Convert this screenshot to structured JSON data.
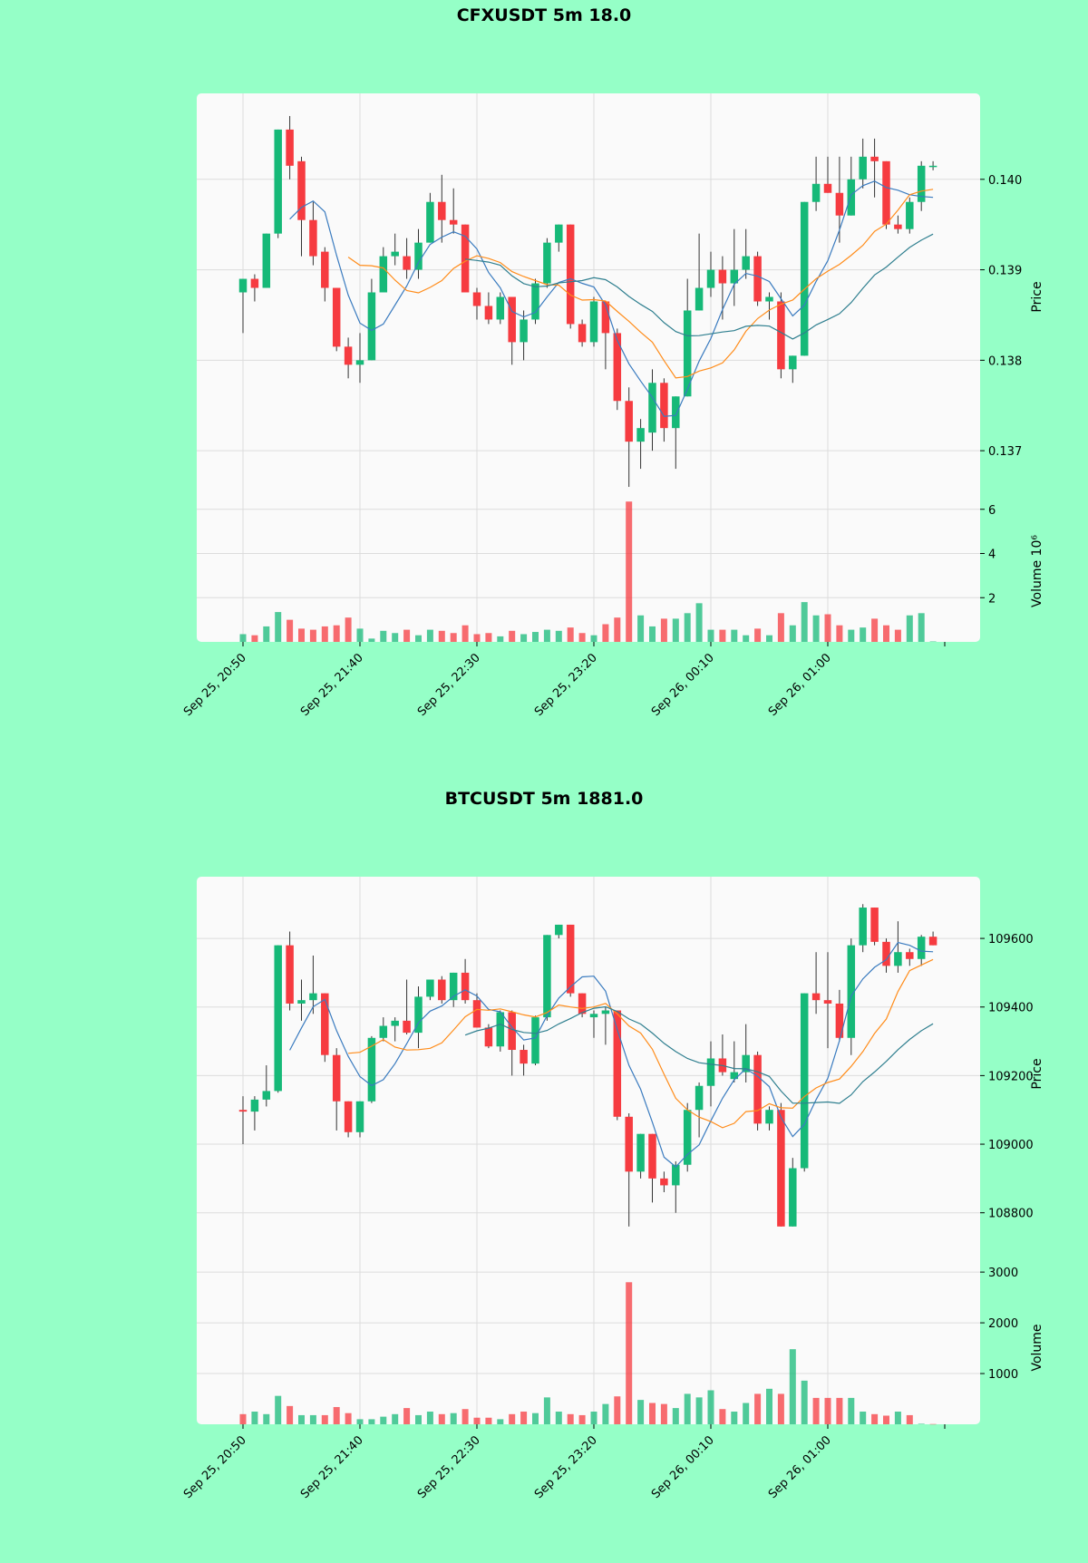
{
  "colors": {
    "background": "#95ffc7",
    "panel": "#fafafa",
    "up": "#16b978",
    "down": "#f63b40",
    "ma_short": "#3a7bbf",
    "ma_mid": "#ff8c1a",
    "ma_long": "#2f7f8f",
    "grid": "#dcdcdc"
  },
  "chart_data": [
    {
      "type": "candlestick",
      "title": "CFXUSDT 5m 18.0",
      "price_label": "Price",
      "volume_label": "Volume  10⁶",
      "time_ticks": [
        "Sep 25, 20:50",
        "Sep 25, 21:40",
        "Sep 25, 22:30",
        "Sep 25, 23:20",
        "Sep 26, 00:10",
        "Sep 26, 01:00"
      ],
      "time_tick_index": [
        0,
        10,
        20,
        30,
        40,
        50
      ],
      "price_ticks": [
        0.137,
        0.138,
        0.139,
        0.14
      ],
      "price_tick_labels": [
        "0.137",
        "0.138",
        "0.139",
        "0.140"
      ],
      "price_range": [
        0.13645,
        0.14095
      ],
      "volume_ticks": [
        2,
        4,
        6
      ],
      "volume_tick_labels": [
        "2",
        "4",
        "6"
      ],
      "volume_range": [
        0,
        6.4
      ],
      "ohlc": [
        [
          0.13875,
          0.1389,
          0.1383,
          0.1389
        ],
        [
          0.1389,
          0.13895,
          0.13865,
          0.1388
        ],
        [
          0.1388,
          0.1394,
          0.1388,
          0.1394
        ],
        [
          0.1394,
          0.14055,
          0.13935,
          0.14055
        ],
        [
          0.14055,
          0.1407,
          0.14,
          0.14015
        ],
        [
          0.1402,
          0.14025,
          0.13915,
          0.13955
        ],
        [
          0.13955,
          0.13975,
          0.13905,
          0.13915
        ],
        [
          0.1392,
          0.13925,
          0.13865,
          0.1388
        ],
        [
          0.1388,
          0.1388,
          0.1381,
          0.13815
        ],
        [
          0.13815,
          0.13825,
          0.1378,
          0.13795
        ],
        [
          0.13795,
          0.1383,
          0.13775,
          0.138
        ],
        [
          0.138,
          0.1389,
          0.138,
          0.13875
        ],
        [
          0.13875,
          0.13925,
          0.13875,
          0.13915
        ],
        [
          0.13915,
          0.1394,
          0.13905,
          0.1392
        ],
        [
          0.13915,
          0.13935,
          0.1389,
          0.139
        ],
        [
          0.139,
          0.13945,
          0.1389,
          0.1393
        ],
        [
          0.1393,
          0.13985,
          0.1393,
          0.13975
        ],
        [
          0.13975,
          0.14005,
          0.1393,
          0.13955
        ],
        [
          0.13955,
          0.1399,
          0.1394,
          0.1395
        ],
        [
          0.1395,
          0.1395,
          0.13875,
          0.13875
        ],
        [
          0.13875,
          0.1388,
          0.13845,
          0.1386
        ],
        [
          0.1386,
          0.13875,
          0.1384,
          0.13845
        ],
        [
          0.13845,
          0.13875,
          0.1384,
          0.1387
        ],
        [
          0.1387,
          0.1387,
          0.13795,
          0.1382
        ],
        [
          0.1382,
          0.13855,
          0.138,
          0.13845
        ],
        [
          0.13845,
          0.1389,
          0.1384,
          0.13885
        ],
        [
          0.13885,
          0.13935,
          0.1388,
          0.1393
        ],
        [
          0.1393,
          0.1395,
          0.1392,
          0.1395
        ],
        [
          0.1395,
          0.1395,
          0.13835,
          0.1384
        ],
        [
          0.1384,
          0.13845,
          0.13815,
          0.1382
        ],
        [
          0.1382,
          0.1387,
          0.13815,
          0.13865
        ],
        [
          0.13865,
          0.13865,
          0.1379,
          0.1383
        ],
        [
          0.1383,
          0.13835,
          0.13745,
          0.13755
        ],
        [
          0.13755,
          0.1377,
          0.1366,
          0.1371
        ],
        [
          0.1371,
          0.13735,
          0.1368,
          0.13725
        ],
        [
          0.1372,
          0.1379,
          0.137,
          0.13775
        ],
        [
          0.13775,
          0.1378,
          0.1371,
          0.13725
        ],
        [
          0.13725,
          0.1376,
          0.1368,
          0.1376
        ],
        [
          0.1376,
          0.1389,
          0.1376,
          0.13855
        ],
        [
          0.13855,
          0.1394,
          0.13855,
          0.1388
        ],
        [
          0.1388,
          0.1392,
          0.1387,
          0.139
        ],
        [
          0.139,
          0.13915,
          0.13845,
          0.13885
        ],
        [
          0.13885,
          0.13945,
          0.1386,
          0.139
        ],
        [
          0.139,
          0.13945,
          0.1389,
          0.13915
        ],
        [
          0.13915,
          0.1392,
          0.1386,
          0.13865
        ],
        [
          0.13865,
          0.13875,
          0.13845,
          0.1387
        ],
        [
          0.13865,
          0.13875,
          0.1378,
          0.1379
        ],
        [
          0.1379,
          0.13805,
          0.13775,
          0.13805
        ],
        [
          0.13805,
          0.13975,
          0.13805,
          0.13975
        ],
        [
          0.13975,
          0.14025,
          0.13965,
          0.13995
        ],
        [
          0.13995,
          0.14025,
          0.13985,
          0.13985
        ],
        [
          0.13985,
          0.14025,
          0.1393,
          0.1396
        ],
        [
          0.1396,
          0.14025,
          0.1396,
          0.14
        ],
        [
          0.14,
          0.14045,
          0.1399,
          0.14025
        ],
        [
          0.14025,
          0.14045,
          0.1398,
          0.1402
        ],
        [
          0.1402,
          0.1402,
          0.13945,
          0.1395
        ],
        [
          0.1395,
          0.1396,
          0.1394,
          0.13945
        ],
        [
          0.13945,
          0.1398,
          0.1394,
          0.13975
        ],
        [
          0.13975,
          0.1402,
          0.13965,
          0.14015
        ],
        [
          0.14015,
          0.1402,
          0.1401,
          0.14015
        ]
      ],
      "volume": [
        0.35,
        0.3,
        0.7,
        1.35,
        1.0,
        0.6,
        0.55,
        0.7,
        0.75,
        1.1,
        0.6,
        0.15,
        0.5,
        0.4,
        0.55,
        0.3,
        0.55,
        0.5,
        0.4,
        0.75,
        0.35,
        0.4,
        0.25,
        0.5,
        0.35,
        0.45,
        0.55,
        0.5,
        0.65,
        0.4,
        0.3,
        0.8,
        1.1,
        6.35,
        1.2,
        0.7,
        1.05,
        1.05,
        1.3,
        1.75,
        0.55,
        0.55,
        0.55,
        0.3,
        0.6,
        0.3,
        1.3,
        0.75,
        1.8,
        1.2,
        1.25,
        0.75,
        0.55,
        0.65,
        1.05,
        0.75,
        0.55,
        1.2,
        1.3,
        0.02
      ]
    },
    {
      "type": "candlestick",
      "title": "BTCUSDT 5m 1881.0",
      "price_label": "Price",
      "volume_label": "Volume",
      "time_ticks": [
        "Sep 25, 20:50",
        "Sep 25, 21:40",
        "Sep 25, 22:30",
        "Sep 25, 23:20",
        "Sep 26, 00:10",
        "Sep 26, 01:00"
      ],
      "time_tick_index": [
        0,
        10,
        20,
        30,
        40,
        50
      ],
      "price_ticks": [
        108800,
        109000,
        109200,
        109400,
        109600
      ],
      "price_tick_labels": [
        "108800",
        "109000",
        "109200",
        "109400",
        "109600"
      ],
      "price_range": [
        108630,
        109780
      ],
      "volume_ticks": [
        1000,
        2000,
        3000
      ],
      "volume_tick_labels": [
        "1000",
        "2000",
        "3000"
      ],
      "volume_range": [
        0,
        3020
      ],
      "ohlc": [
        [
          109100,
          109140,
          109000,
          109095
        ],
        [
          109095,
          109140,
          109040,
          109130
        ],
        [
          109130,
          109230,
          109110,
          109155
        ],
        [
          109155,
          109580,
          109150,
          109580
        ],
        [
          109580,
          109620,
          109390,
          109410
        ],
        [
          109410,
          109480,
          109360,
          109420
        ],
        [
          109420,
          109550,
          109380,
          109440
        ],
        [
          109440,
          109440,
          109240,
          109260
        ],
        [
          109260,
          109280,
          109040,
          109125
        ],
        [
          109125,
          109125,
          109020,
          109035
        ],
        [
          109035,
          109125,
          109020,
          109125
        ],
        [
          109125,
          109315,
          109120,
          109310
        ],
        [
          109310,
          109370,
          109300,
          109345
        ],
        [
          109345,
          109370,
          109300,
          109360
        ],
        [
          109360,
          109480,
          109320,
          109325
        ],
        [
          109325,
          109460,
          109280,
          109430
        ],
        [
          109430,
          109475,
          109420,
          109480
        ],
        [
          109480,
          109490,
          109410,
          109420
        ],
        [
          109420,
          109500,
          109400,
          109500
        ],
        [
          109500,
          109540,
          109410,
          109420
        ],
        [
          109420,
          109440,
          109340,
          109340
        ],
        [
          109340,
          109350,
          109280,
          109285
        ],
        [
          109285,
          109390,
          109270,
          109385
        ],
        [
          109385,
          109390,
          109200,
          109275
        ],
        [
          109275,
          109290,
          109200,
          109235
        ],
        [
          109235,
          109375,
          109230,
          109370
        ],
        [
          109370,
          109610,
          109360,
          109610
        ],
        [
          109610,
          109640,
          109600,
          109640
        ],
        [
          109640,
          109640,
          109430,
          109440
        ],
        [
          109440,
          109440,
          109370,
          109380
        ],
        [
          109370,
          109390,
          109310,
          109380
        ],
        [
          109380,
          109400,
          109290,
          109390
        ],
        [
          109390,
          109390,
          109070,
          109080
        ],
        [
          109080,
          109090,
          108760,
          108920
        ],
        [
          108920,
          109030,
          108900,
          109030
        ],
        [
          109030,
          109030,
          108830,
          108900
        ],
        [
          108900,
          108920,
          108860,
          108880
        ],
        [
          108880,
          108950,
          108800,
          108940
        ],
        [
          108940,
          109120,
          108920,
          109100
        ],
        [
          109100,
          109180,
          109020,
          109170
        ],
        [
          109170,
          109300,
          109110,
          109250
        ],
        [
          109250,
          109320,
          109200,
          109210
        ],
        [
          109190,
          109300,
          109180,
          109210
        ],
        [
          109210,
          109350,
          109180,
          109260
        ],
        [
          109260,
          109270,
          109040,
          109060
        ],
        [
          109060,
          109110,
          109040,
          109100
        ],
        [
          109100,
          109120,
          108760,
          108760
        ],
        [
          108760,
          108960,
          108760,
          108930
        ],
        [
          108930,
          109440,
          108920,
          109440
        ],
        [
          109440,
          109560,
          109380,
          109420
        ],
        [
          109420,
          109560,
          109280,
          109410
        ],
        [
          109410,
          109450,
          109300,
          109310
        ],
        [
          109310,
          109600,
          109260,
          109580
        ],
        [
          109580,
          109700,
          109560,
          109690
        ],
        [
          109690,
          109690,
          109580,
          109590
        ],
        [
          109590,
          109600,
          109500,
          109520
        ],
        [
          109520,
          109650,
          109500,
          109560
        ],
        [
          109560,
          109570,
          109520,
          109540
        ],
        [
          109540,
          109610,
          109520,
          109605
        ],
        [
          109605,
          109620,
          109580,
          109580
        ]
      ],
      "volume": [
        200,
        250,
        200,
        560,
        360,
        180,
        180,
        180,
        340,
        220,
        100,
        100,
        150,
        200,
        320,
        180,
        250,
        200,
        220,
        300,
        130,
        130,
        100,
        200,
        250,
        220,
        530,
        250,
        200,
        180,
        250,
        400,
        550,
        2800,
        480,
        420,
        400,
        320,
        600,
        530,
        670,
        300,
        250,
        420,
        600,
        700,
        600,
        1480,
        860,
        520,
        520,
        520,
        520,
        250,
        200,
        170,
        250,
        180,
        10,
        5
      ]
    }
  ]
}
